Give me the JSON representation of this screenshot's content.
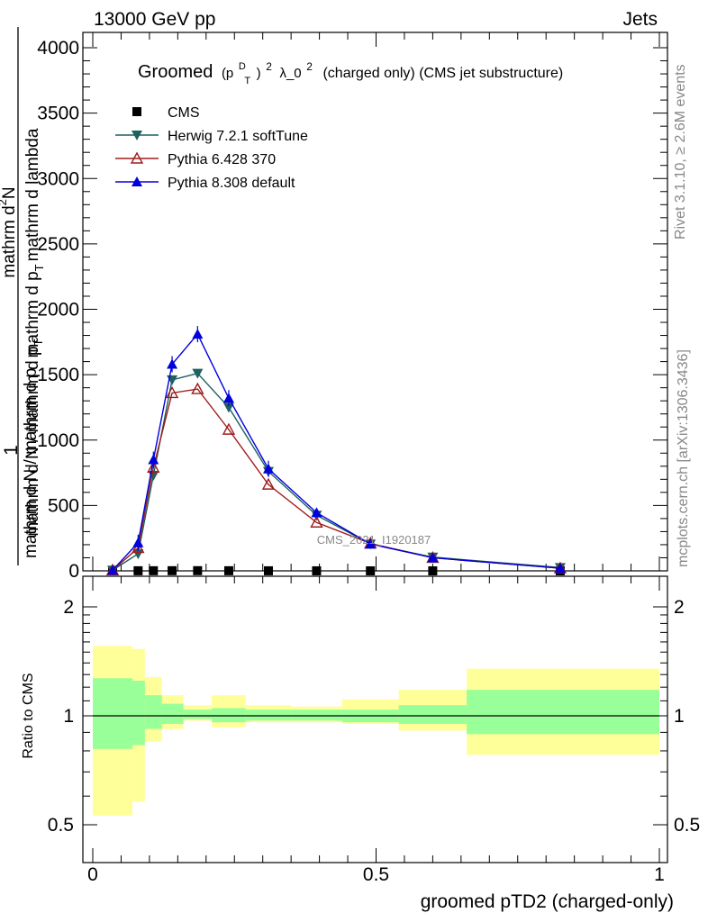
{
  "header": {
    "left": "13000 GeV pp",
    "right": "Jets"
  },
  "side_labels": {
    "rivet": "Rivet 3.1.10, ≥ 2.6M events",
    "mcplots": "mcplots.cern.ch [arXiv:1306.3436]"
  },
  "watermark": "CMS_2021_I1920187",
  "title_parts": {
    "pre": "Groomed",
    "p": "(p",
    "sup": "D",
    "sub": "T",
    "post": ")",
    "exp": "2",
    "lambda": "λ_0",
    "lambda_exp": "2",
    "rest": "(charged only) (CMS jet substructure)"
  },
  "ylabel_parts": {
    "one": "1",
    "denom": "mathrm d N / mathrm d p",
    "denom_sub": "T",
    "num_top": "mathrm d",
    "num_top_sup": "2",
    "num_top_end": "N",
    "num_bottom": "mathrm d p",
    "num_bottom_sub": "T",
    "num_bottom_end": "mathrm d lambda"
  },
  "ratio_ylabel": "Ratio to CMS",
  "xlabel": "groomed pTD2 (charged-only)",
  "upper_yticks": [
    "0",
    "500",
    "1000",
    "1500",
    "2000",
    "2500",
    "3000",
    "3500",
    "4000"
  ],
  "ratio_yticks": [
    "0.5",
    "1",
    "2"
  ],
  "xticks": [
    "0",
    "0.5",
    "1"
  ],
  "chart_data": {
    "type": "line",
    "xlim": [
      0,
      1
    ],
    "ylim": [
      0,
      4100
    ],
    "ratio_ylim": [
      0.4,
      2.25
    ],
    "legend_position": "top-left",
    "series": [
      {
        "name": "CMS",
        "color": "#000000",
        "marker": "square",
        "x": [
          0.035,
          0.08,
          0.107,
          0.14,
          0.185,
          0.24,
          0.31,
          0.395,
          0.49,
          0.6,
          0.825
        ],
        "y": [
          0.2,
          0.6,
          0.9,
          1.2,
          1.4,
          0.9,
          0.5,
          0.25,
          0.15,
          0.06,
          0.01
        ]
      },
      {
        "name": "Herwig 7.2.1 softTune",
        "color": "#1f6060",
        "marker": "triangle-down",
        "x": [
          0.035,
          0.08,
          0.107,
          0.14,
          0.185,
          0.24,
          0.31,
          0.395,
          0.49,
          0.6,
          0.825
        ],
        "y": [
          5,
          130,
          730,
          1460,
          1510,
          1250,
          760,
          425,
          205,
          105,
          25
        ]
      },
      {
        "name": "Pythia 6.428 370",
        "color": "#a01c1c",
        "marker": "triangle-up-open",
        "x": [
          0.035,
          0.08,
          0.107,
          0.14,
          0.185,
          0.24,
          0.31,
          0.395,
          0.49,
          0.6,
          0.825
        ],
        "y": [
          5,
          175,
          790,
          1360,
          1390,
          1080,
          660,
          370,
          210,
          100,
          20
        ]
      },
      {
        "name": "Pythia 8.308 default",
        "color": "#0000dd",
        "marker": "triangle-up",
        "x": [
          0.035,
          0.08,
          0.107,
          0.14,
          0.185,
          0.24,
          0.31,
          0.395,
          0.49,
          0.6,
          0.825
        ],
        "y": [
          5,
          215,
          850,
          1580,
          1810,
          1320,
          780,
          445,
          205,
          100,
          20
        ]
      }
    ],
    "ratio_bands": {
      "edges": [
        0.0,
        0.07,
        0.092,
        0.122,
        0.16,
        0.21,
        0.27,
        0.35,
        0.44,
        0.54,
        0.66,
        1.0
      ],
      "green_upper": [
        1.27,
        1.25,
        1.14,
        1.08,
        1.04,
        1.05,
        1.04,
        1.04,
        1.04,
        1.07,
        1.18
      ],
      "green_lower": [
        0.81,
        0.83,
        0.92,
        0.95,
        0.98,
        0.96,
        0.97,
        0.97,
        0.96,
        0.95,
        0.89
      ],
      "yellow_upper": [
        1.56,
        1.53,
        1.28,
        1.14,
        1.07,
        1.14,
        1.07,
        1.06,
        1.11,
        1.18,
        1.35
      ],
      "yellow_lower": [
        0.53,
        0.58,
        0.85,
        0.92,
        0.97,
        0.93,
        0.96,
        0.96,
        0.95,
        0.91,
        0.78
      ]
    },
    "colors": {
      "green_band": "#99ff99",
      "yellow_band": "#ffff99"
    }
  }
}
